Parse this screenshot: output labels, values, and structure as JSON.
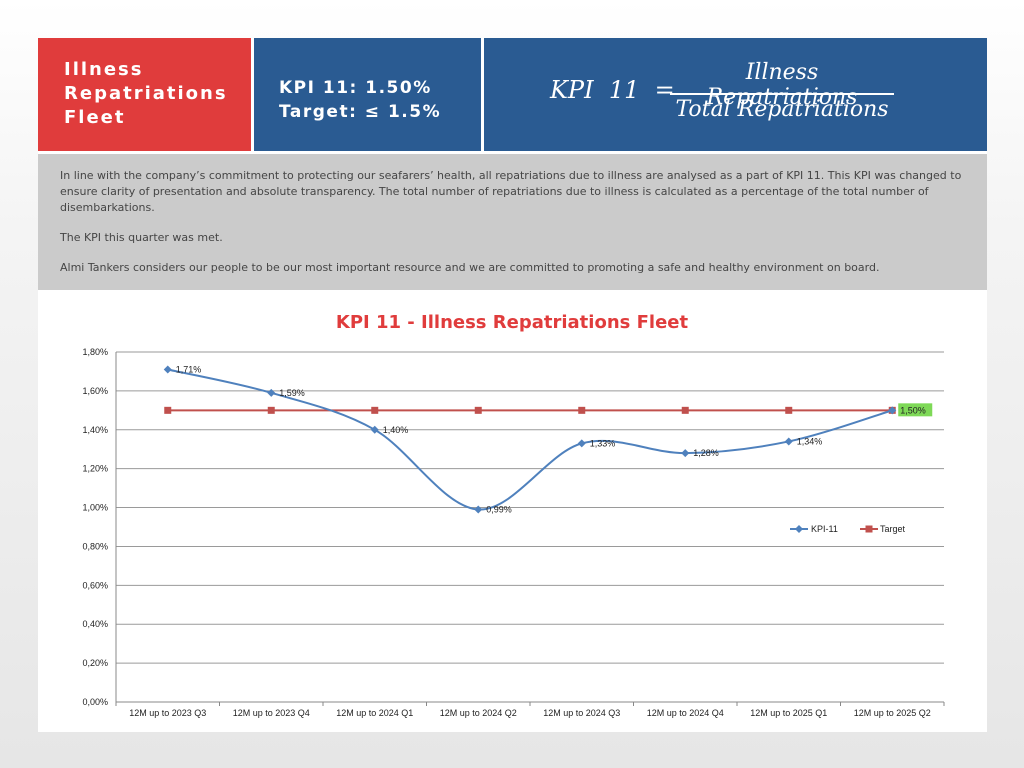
{
  "header": {
    "title_lines": [
      "Illness",
      "Repatriations",
      "Fleet"
    ],
    "kpi_value": "KPI 11: 1.50%",
    "kpi_target": "Target: ≤ 1.5%",
    "status_color": "#2ed11a",
    "formula": {
      "lhs": "KPI  11  =",
      "numerator": "Illness Repatriations",
      "denominator": "Total Repatriations"
    }
  },
  "description": {
    "p1": "In line with the company’s commitment to protecting our seafarers’ health, all repatriations due to illness are analysed as a part of KPI 11. This KPI was changed to ensure clarity of presentation and absolute transparency. The total number of repatriations due to illness is calculated as a percentage of the total number of disembarkations.",
    "p2": "The KPI this quarter was met.",
    "p3": "Almi Tankers considers our people to be our most important resource and we are committed to promoting a safe and healthy environment on board."
  },
  "chart_data": {
    "type": "line",
    "title": "KPI 11 - Illness Repatriations Fleet",
    "categories": [
      "12M up to 2023  Q3",
      "12M up to 2023  Q4",
      "12M up to 2024  Q1",
      "12M up to 2024  Q2",
      "12M up to 2024  Q3",
      "12M up to 2024  Q4",
      "12M up to 2025 Q1",
      "12M up to 2025 Q2"
    ],
    "series": [
      {
        "name": "KPI-11",
        "values": [
          1.71,
          1.59,
          1.4,
          0.99,
          1.33,
          1.28,
          1.34,
          1.5
        ],
        "labels": [
          "1,71%",
          "1,59%",
          "1,40%",
          "0,99%",
          "1,33%",
          "1,28%",
          "1,34%",
          "1,50%"
        ],
        "color": "#4f81bd",
        "marker": "diamond",
        "smooth": true
      },
      {
        "name": "Target",
        "values": [
          1.5,
          1.5,
          1.5,
          1.5,
          1.5,
          1.5,
          1.5,
          1.5
        ],
        "color": "#c0504d",
        "marker": "square"
      }
    ],
    "ylim": [
      0,
      1.8
    ],
    "yticks": [
      "0,00%",
      "0,20%",
      "0,40%",
      "0,60%",
      "0,80%",
      "1,00%",
      "1,20%",
      "1,40%",
      "1,60%",
      "1,80%"
    ],
    "grid": true,
    "legend": "right",
    "highlight_last_label_color": "#7ed957",
    "xlabel": "",
    "ylabel": ""
  }
}
